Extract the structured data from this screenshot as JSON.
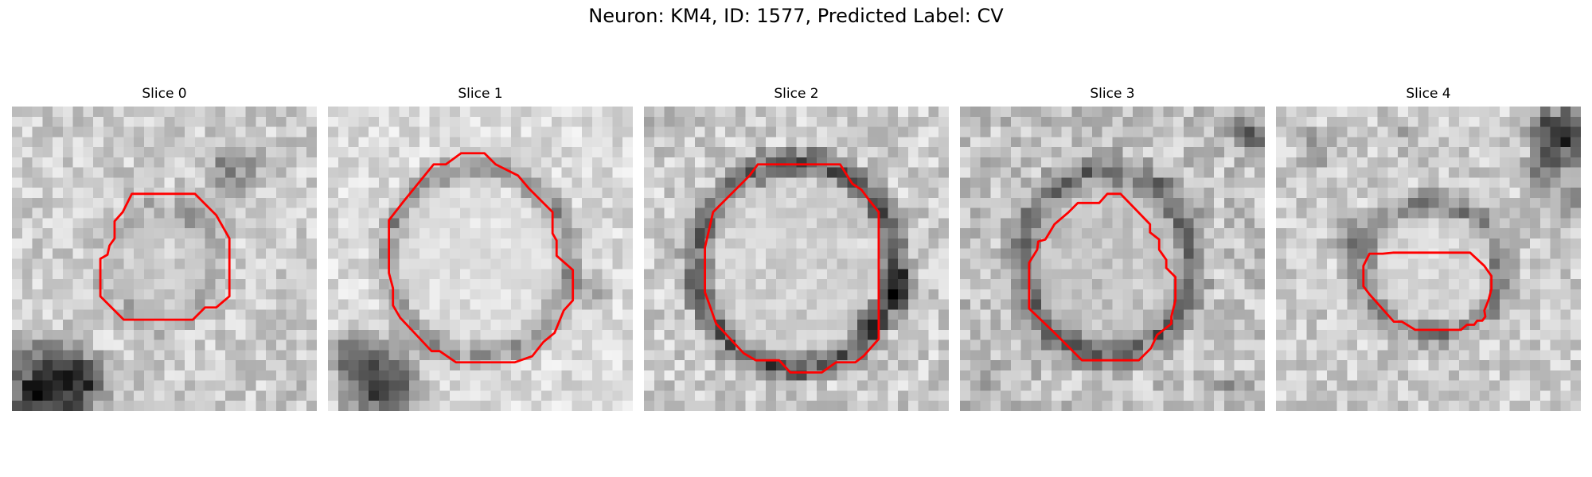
{
  "title": "Neuron: KM4, ID: 1577, Predicted Label: CV",
  "colors": {
    "contour": "#ff0000",
    "colormap": "gray"
  },
  "slices": [
    {
      "label": "Slice 0"
    },
    {
      "label": "Slice 1"
    },
    {
      "label": "Slice 2"
    },
    {
      "label": "Slice 3"
    },
    {
      "label": "Slice 4"
    }
  ]
}
